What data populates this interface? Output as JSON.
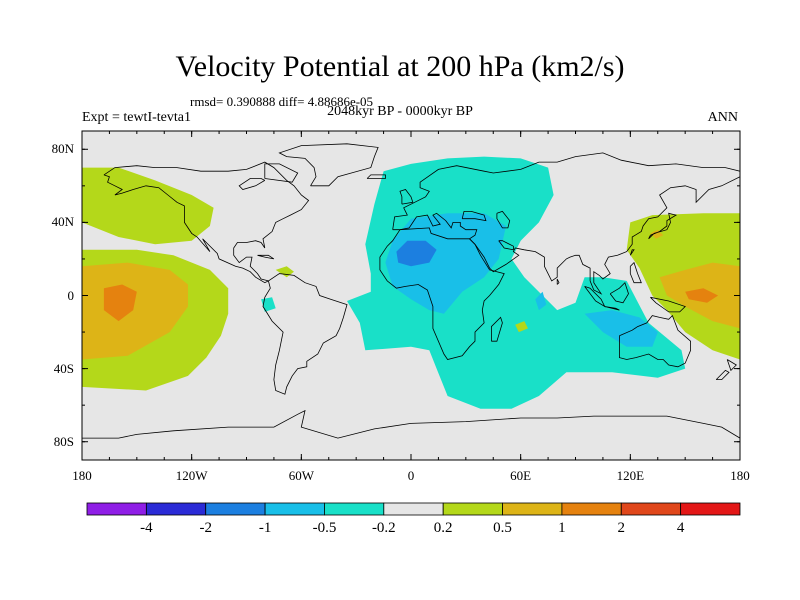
{
  "title": "Velocity Potential at 200 hPa (km2/s)",
  "stats": "rmsd= 0.390888  diff= 4.88686e-05",
  "left_label": "Expt = tewtI-tevta1",
  "center_label": "2048kyr BP - 0000kyr BP",
  "right_label": "ANN",
  "chart_data": {
    "type": "heatmap",
    "title": "Velocity Potential at 200 hPa (km2/s)",
    "projection": "cylindrical equidistant",
    "xlim": [
      -180,
      180
    ],
    "ylim": [
      -90,
      90
    ],
    "x_ticks": [
      {
        "value": -180,
        "label": "180"
      },
      {
        "value": -120,
        "label": "120W"
      },
      {
        "value": -60,
        "label": "60W"
      },
      {
        "value": 0,
        "label": "0"
      },
      {
        "value": 60,
        "label": "60E"
      },
      {
        "value": 120,
        "label": "120E"
      },
      {
        "value": 180,
        "label": "180"
      }
    ],
    "y_ticks": [
      {
        "value": 80,
        "label": "80N"
      },
      {
        "value": 40,
        "label": "40N"
      },
      {
        "value": 0,
        "label": "0"
      },
      {
        "value": -40,
        "label": "40S"
      },
      {
        "value": -80,
        "label": "80S"
      }
    ],
    "colorbar": {
      "levels": [
        "-4",
        "-2",
        "-1",
        "-0.5",
        "-0.2",
        "0.2",
        "0.5",
        "1",
        "2",
        "4"
      ],
      "colors": [
        "#8f1ee6",
        "#2b2bd6",
        "#1c7fe0",
        "#19bfe8",
        "#19e0c8",
        "#e6e6e6",
        "#b4d81a",
        "#ddb417",
        "#e5820f",
        "#e0471b",
        "#e31717"
      ]
    },
    "regions": [
      {
        "name": "North Pacific positive",
        "level_color": 6,
        "points": [
          [
            -180,
            70
          ],
          [
            -160,
            70
          ],
          [
            -140,
            63
          ],
          [
            -120,
            55
          ],
          [
            -108,
            48
          ],
          [
            -110,
            38
          ],
          [
            -120,
            30
          ],
          [
            -140,
            28
          ],
          [
            -160,
            32
          ],
          [
            -180,
            40
          ]
        ]
      },
      {
        "name": "Tropical/South Pacific positive",
        "level_color": 6,
        "points": [
          [
            -180,
            25
          ],
          [
            -150,
            25
          ],
          [
            -130,
            22
          ],
          [
            -110,
            14
          ],
          [
            -100,
            4
          ],
          [
            -100,
            -10
          ],
          [
            -104,
            -22
          ],
          [
            -112,
            -34
          ],
          [
            -122,
            -44
          ],
          [
            -145,
            -52
          ],
          [
            -180,
            -50
          ]
        ]
      },
      {
        "name": "Central Pacific 0.5-1",
        "level_color": 7,
        "points": [
          [
            -180,
            16
          ],
          [
            -155,
            18
          ],
          [
            -132,
            14
          ],
          [
            -122,
            6
          ],
          [
            -122,
            -6
          ],
          [
            -132,
            -20
          ],
          [
            -155,
            -33
          ],
          [
            -180,
            -35
          ]
        ]
      },
      {
        "name": "Central Pacific 1-2",
        "level_color": 8,
        "points": [
          [
            -168,
            4
          ],
          [
            -158,
            6
          ],
          [
            -150,
            2
          ],
          [
            -152,
            -8
          ],
          [
            -160,
            -14
          ],
          [
            -168,
            -8
          ]
        ]
      },
      {
        "name": "Eurasia-Africa negative",
        "level_color": 4,
        "points": [
          [
            -20,
            50
          ],
          [
            -15,
            68
          ],
          [
            0,
            72
          ],
          [
            20,
            75
          ],
          [
            40,
            76
          ],
          [
            60,
            75
          ],
          [
            75,
            70
          ],
          [
            78,
            55
          ],
          [
            70,
            40
          ],
          [
            60,
            30
          ],
          [
            55,
            20
          ],
          [
            62,
            10
          ],
          [
            80,
            -8
          ],
          [
            90,
            -4
          ],
          [
            95,
            10
          ],
          [
            105,
            10
          ],
          [
            118,
            8
          ],
          [
            130,
            -15
          ],
          [
            148,
            -30
          ],
          [
            150,
            -40
          ],
          [
            135,
            -45
          ],
          [
            110,
            -42
          ],
          [
            85,
            -42
          ],
          [
            70,
            -55
          ],
          [
            55,
            -62
          ],
          [
            38,
            -62
          ],
          [
            20,
            -55
          ],
          [
            14,
            -40
          ],
          [
            10,
            -30
          ],
          [
            0,
            -28
          ],
          [
            -25,
            -30
          ],
          [
            -28,
            -15
          ],
          [
            -35,
            -3
          ],
          [
            -22,
            2
          ],
          [
            -22,
            12
          ],
          [
            -25,
            28
          ]
        ]
      },
      {
        "name": "North Africa -0.5 to -1",
        "level_color": 3,
        "points": [
          [
            -10,
            30
          ],
          [
            0,
            42
          ],
          [
            20,
            45
          ],
          [
            40,
            45
          ],
          [
            52,
            38
          ],
          [
            48,
            20
          ],
          [
            40,
            10
          ],
          [
            28,
            2
          ],
          [
            18,
            -10
          ],
          [
            10,
            -8
          ],
          [
            0,
            -2
          ],
          [
            -10,
            5
          ],
          [
            -14,
            18
          ]
        ]
      },
      {
        "name": "Sahara -1 to -2",
        "level_color": 2,
        "points": [
          [
            -8,
            24
          ],
          [
            -2,
            30
          ],
          [
            8,
            30
          ],
          [
            14,
            25
          ],
          [
            10,
            18
          ],
          [
            0,
            16
          ],
          [
            -7,
            18
          ]
        ]
      },
      {
        "name": "Maritime Continent -0.5 to -1",
        "level_color": 3,
        "points": [
          [
            95,
            -10
          ],
          [
            110,
            -8
          ],
          [
            125,
            -12
          ],
          [
            135,
            -20
          ],
          [
            132,
            -28
          ],
          [
            118,
            -28
          ],
          [
            105,
            -20
          ]
        ]
      },
      {
        "name": "Indian Ocean -0.5 to -1",
        "level_color": 3,
        "points": [
          [
            68,
            -2
          ],
          [
            72,
            2
          ],
          [
            74,
            -5
          ],
          [
            70,
            -8
          ]
        ]
      },
      {
        "name": "West Pacific positive",
        "level_color": 6,
        "points": [
          [
            120,
            40
          ],
          [
            132,
            44
          ],
          [
            160,
            45
          ],
          [
            180,
            45
          ],
          [
            180,
            -35
          ],
          [
            165,
            -30
          ],
          [
            150,
            -20
          ],
          [
            140,
            -8
          ],
          [
            132,
            0
          ],
          [
            125,
            15
          ],
          [
            118,
            25
          ]
        ]
      },
      {
        "name": "West Pacific 0.5-1",
        "level_color": 7,
        "points": [
          [
            136,
            10
          ],
          [
            150,
            14
          ],
          [
            165,
            18
          ],
          [
            180,
            16
          ],
          [
            180,
            -18
          ],
          [
            165,
            -14
          ],
          [
            150,
            -6
          ],
          [
            140,
            0
          ]
        ]
      },
      {
        "name": "West Pacific 1-2",
        "level_color": 8,
        "points": [
          [
            150,
            2
          ],
          [
            160,
            4
          ],
          [
            168,
            0
          ],
          [
            162,
            -4
          ],
          [
            152,
            -2
          ]
        ]
      },
      {
        "name": "Japan 0.5-1",
        "level_color": 7,
        "points": [
          [
            131,
            34
          ],
          [
            135,
            36
          ],
          [
            138,
            33
          ],
          [
            134,
            31
          ]
        ]
      },
      {
        "name": "Caribbean positive",
        "level_color": 6,
        "points": [
          [
            -74,
            14
          ],
          [
            -68,
            16
          ],
          [
            -64,
            13
          ],
          [
            -68,
            10
          ]
        ]
      },
      {
        "name": "Madagascar-east positive",
        "level_color": 6,
        "points": [
          [
            57,
            -16
          ],
          [
            62,
            -14
          ],
          [
            64,
            -18
          ],
          [
            59,
            -20
          ]
        ]
      },
      {
        "name": "Amazon small negative",
        "level_color": 4,
        "points": [
          [
            -82,
            -2
          ],
          [
            -76,
            -1
          ],
          [
            -74,
            -7
          ],
          [
            -80,
            -9
          ]
        ]
      }
    ]
  }
}
